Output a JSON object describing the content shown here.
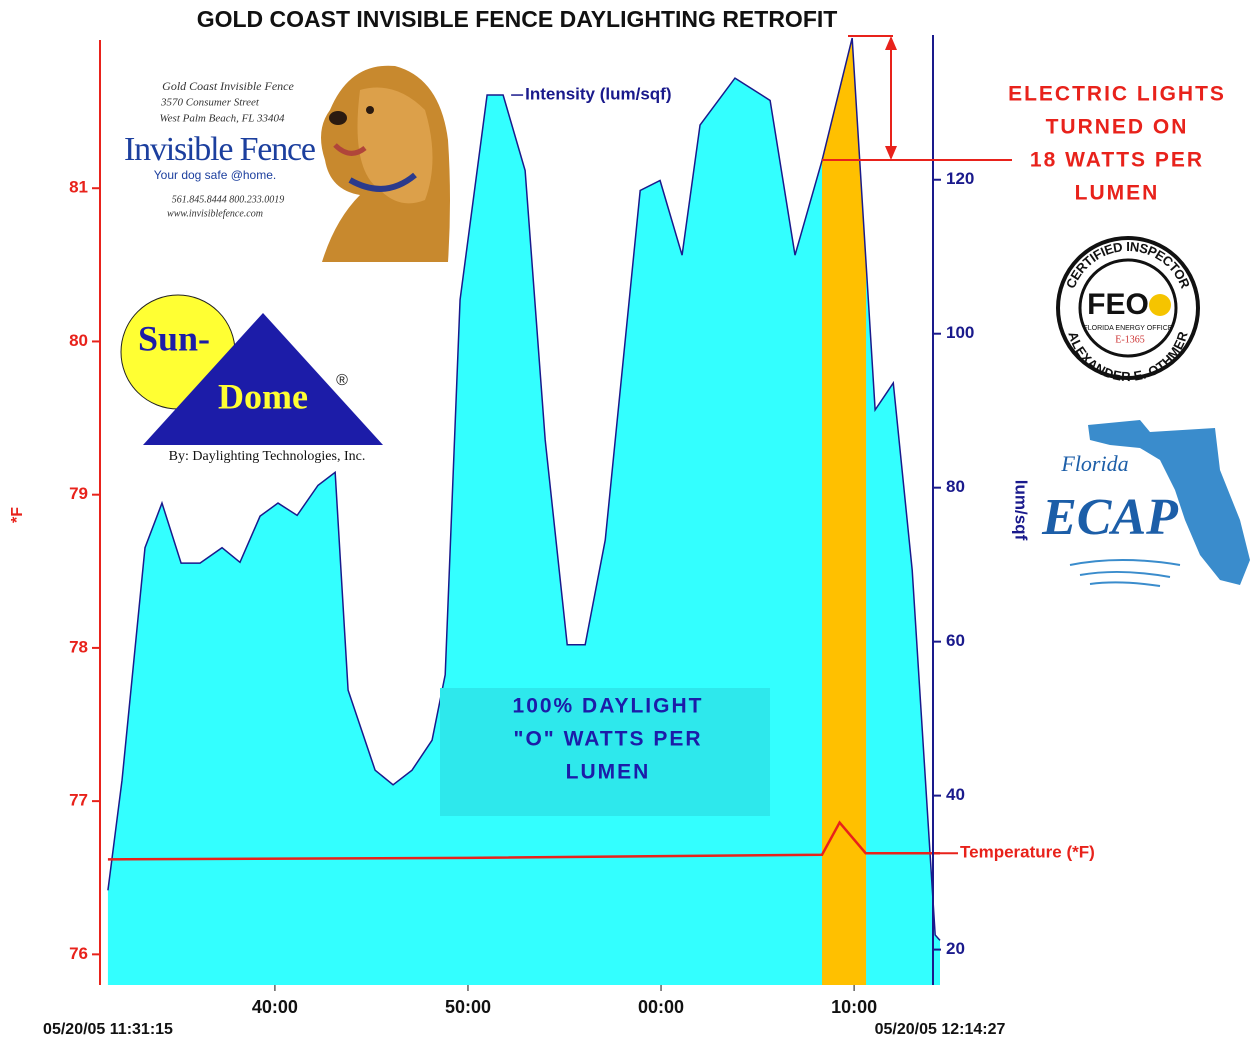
{
  "chart_data": {
    "type": "area",
    "title": "GOLD COAST INVISIBLE FENCE DAYLIGHTING RETROFIT",
    "x_start_label": "05/20/05 11:31:15",
    "x_end_label": "05/20/05 12:14:27",
    "xlim": [
      31.25,
      74.45
    ],
    "xticks": [
      {
        "value": 40,
        "label": "40:00"
      },
      {
        "value": 50,
        "label": "50:00"
      },
      {
        "value": 60,
        "label": "00:00"
      },
      {
        "value": 70,
        "label": "10:00"
      }
    ],
    "y_label": "*F",
    "ylim": [
      75.8,
      82
    ],
    "yticks": [
      76,
      77,
      78,
      79,
      80,
      81
    ],
    "y_color": "#e8221b",
    "y2_label": "lum/sqf",
    "y2lim": [
      15.4,
      138.8
    ],
    "y2ticks": [
      20,
      40,
      60,
      80,
      100,
      120
    ],
    "y2_color": "#1a1a8c",
    "series": [
      {
        "name": "Intensity (lum/sqf)",
        "type": "area",
        "axis": "y2",
        "color": "#33ffff",
        "line_color": "#1a1a8c",
        "x": [
          31.35,
          32.08,
          33.27,
          34.15,
          35.14,
          36.12,
          37.26,
          38.19,
          39.23,
          40.16,
          41.15,
          42.23,
          43.12,
          43.79,
          45.19,
          46.12,
          47.1,
          48.14,
          48.82,
          49.59,
          50.99,
          51.82,
          52.96,
          54.0,
          55.14,
          56.07,
          57.11,
          58.92,
          59.95,
          61.09,
          62.02,
          63.83,
          65.65,
          66.94,
          68.34,
          69.9,
          71.09,
          72.03,
          73.01,
          74.2,
          74.45
        ],
        "values": [
          27.7,
          42.0,
          72.2,
          78.0,
          70.2,
          70.2,
          72.2,
          70.3,
          76.3,
          78.0,
          76.4,
          80.3,
          82.0,
          53.7,
          43.3,
          41.4,
          43.3,
          47.2,
          55.7,
          104.4,
          131.0,
          131.0,
          121.2,
          86.2,
          59.6,
          59.6,
          73.2,
          118.6,
          119.9,
          110.2,
          127.1,
          133.2,
          130.3,
          110.2,
          122.5,
          138.4,
          90.1,
          93.6,
          69.3,
          21.9,
          21.2
        ]
      },
      {
        "name": "Temperature (*F)",
        "type": "line",
        "axis": "y",
        "color": "#e8221b",
        "x": [
          31.35,
          50,
          68.34,
          69.25,
          70.6,
          74.45
        ],
        "values": [
          76.62,
          76.63,
          76.65,
          76.86,
          76.66,
          76.66
        ]
      }
    ],
    "highlight": {
      "x": [
        68.34,
        70.62
      ],
      "color": "#ffc000"
    },
    "daylight_note": [
      "100% DAYLIGHT",
      "\"O\" WATTS PER",
      "LUMEN"
    ],
    "electric_note": [
      "ELECTRIC LIGHTS",
      "TURNED ON",
      "18 WATTS PER",
      "LUMEN"
    ],
    "logos": {
      "invisible_fence": [
        "Gold Coast Invisible Fence",
        "3570 Consumer Street",
        "West Palm Beach, FL 33404",
        "Invisible Fence",
        "Your dog safe @home.",
        "561.845.8444  800.233.0019",
        "www.invisiblefence.com"
      ],
      "sun_dome": [
        "Sun-",
        "Dome",
        "®",
        "By: Daylighting Technologies, Inc."
      ],
      "feo": [
        "CERTIFIED INSPECTOR",
        "FEO",
        "FLORIDA ENERGY OFFICE",
        "E-1365",
        "ALEXANDER E. OTHMER"
      ],
      "ecap": [
        "Florida",
        "ECAP"
      ]
    }
  }
}
